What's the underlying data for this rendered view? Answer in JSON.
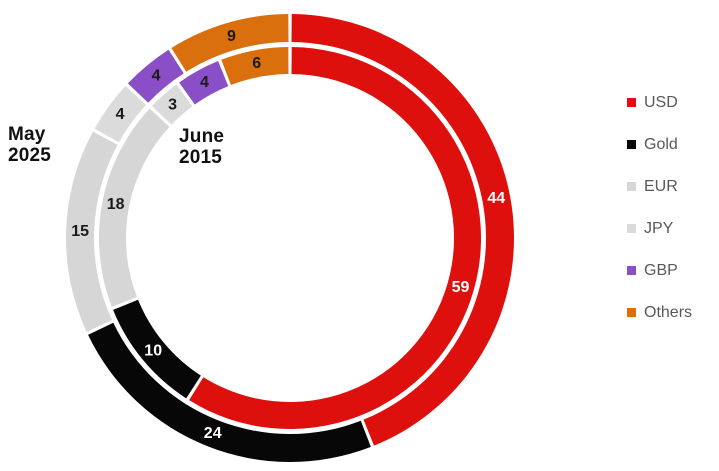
{
  "chart_data": {
    "type": "pie",
    "subtype": "nested-donut",
    "direction": "clockwise",
    "start_angle_deg": 0,
    "categories": [
      "USD",
      "Gold",
      "EUR",
      "JPY",
      "GBP",
      "Others"
    ],
    "series": [
      {
        "name": "May 2025",
        "ring": "outer",
        "values": [
          44,
          24,
          15,
          4,
          4,
          9
        ]
      },
      {
        "name": "June 2015",
        "ring": "inner",
        "values": [
          59,
          10,
          18,
          3,
          4,
          6
        ]
      }
    ],
    "colors": {
      "USD": "#dd100e",
      "Gold": "#070707",
      "EUR": "#d6d6d6",
      "JPY": "#dbdbdb",
      "GBP": "#8a4ec6",
      "Others": "#d9700d"
    },
    "label_colors": {
      "USD": "#ffffff",
      "Gold": "#ffffff",
      "EUR": "#1a1a1a",
      "JPY": "#1a1a1a",
      "GBP": "#1a1a1a",
      "Others": "#1a1a1a"
    },
    "ring_labels": {
      "outer": {
        "line1": "May",
        "line2": "2025"
      },
      "inner": {
        "line1": "June",
        "line2": "2015"
      }
    },
    "legend": {
      "position": "right",
      "entries": [
        "USD",
        "Gold",
        "EUR",
        "JPY",
        "GBP",
        "Others"
      ]
    }
  },
  "legend_text_color": "#595959"
}
